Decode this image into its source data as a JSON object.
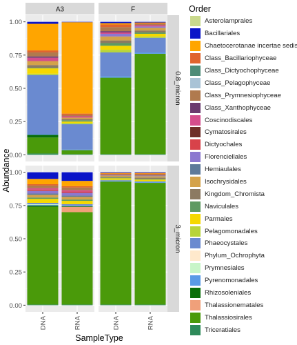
{
  "chart_data": {
    "type": "bar",
    "stacked": true,
    "facet_columns": [
      "A3",
      "F"
    ],
    "facet_rows": [
      "0.8_micron",
      "3_micron"
    ],
    "categories": [
      "DNA",
      "RNA"
    ],
    "xlabel": "SampleType",
    "ylabel": "Abundance",
    "ylim": [
      0,
      1.0
    ],
    "yticks": [
      "0.00",
      "0.25",
      "0.50",
      "0.75",
      "1.00"
    ],
    "grid": true,
    "legend": {
      "title": "Order",
      "position": "right"
    },
    "orders": [
      {
        "name": "Asterolamprales",
        "color": "#c9d98c"
      },
      {
        "name": "Bacillariales",
        "color": "#0a14c8"
      },
      {
        "name": "Chaetocerotanae incertae sedis",
        "color": "#ffa500"
      },
      {
        "name": "Class_Bacillariophyceae",
        "color": "#e0642e"
      },
      {
        "name": "Class_Dictyochophyceae",
        "color": "#4e8c78"
      },
      {
        "name": "Class_Pelagophyceae",
        "color": "#a9c3d6"
      },
      {
        "name": "Class_Prymnesiophyceae",
        "color": "#b07a4e"
      },
      {
        "name": "Class_Xanthophyceae",
        "color": "#6b3a6e"
      },
      {
        "name": "Coscinodiscales",
        "color": "#d44d8c"
      },
      {
        "name": "Cymatosirales",
        "color": "#6e2e28"
      },
      {
        "name": "Dictyochales",
        "color": "#d8424a"
      },
      {
        "name": "Florenciellales",
        "color": "#8c78d0"
      },
      {
        "name": "Hemiaulales",
        "color": "#5e7a9a"
      },
      {
        "name": "Isochrysidales",
        "color": "#d4a24a"
      },
      {
        "name": "Kingdom_Chromista",
        "color": "#8c7a62"
      },
      {
        "name": "Naviculales",
        "color": "#5e9a62"
      },
      {
        "name": "Parmales",
        "color": "#f5d800"
      },
      {
        "name": "Pelagomonadales",
        "color": "#b8d43a"
      },
      {
        "name": "Phaeocystales",
        "color": "#6a8ad0"
      },
      {
        "name": "Phylum_Ochrophyta",
        "color": "#ffe9cc"
      },
      {
        "name": "Prymnesiales",
        "color": "#c8f5c8"
      },
      {
        "name": "Pyrenomonadales",
        "color": "#5a9ae6"
      },
      {
        "name": "Rhizosoleniales",
        "color": "#0a6e0a"
      },
      {
        "name": "Thalassionematales",
        "color": "#f0a07a"
      },
      {
        "name": "Thalassiosirales",
        "color": "#4a9a0a"
      },
      {
        "name": "Triceratiales",
        "color": "#2e8a5a"
      }
    ],
    "panels": [
      {
        "column": "A3",
        "row": "0.8_micron",
        "bars": [
          {
            "sample": "DNA",
            "segments": [
              {
                "order": "Triceratiales",
                "value": 0.01
              },
              {
                "order": "Thalassiosirales",
                "value": 0.12
              },
              {
                "order": "Rhizosoleniales",
                "value": 0.02
              },
              {
                "order": "Pyrenomonadales",
                "value": 0.005
              },
              {
                "order": "Phaeocystales",
                "value": 0.445
              },
              {
                "order": "Pelagomonadales",
                "value": 0.01
              },
              {
                "order": "Parmales",
                "value": 0.04
              },
              {
                "order": "Naviculales",
                "value": 0.005
              },
              {
                "order": "Kingdom_Chromista",
                "value": 0.02
              },
              {
                "order": "Isochrysidales",
                "value": 0.03
              },
              {
                "order": "Coscinodiscales",
                "value": 0.025
              },
              {
                "order": "Class_Xanthophyceae",
                "value": 0.01
              },
              {
                "order": "Class_Prymnesiophyceae",
                "value": 0.03
              },
              {
                "order": "Class_Bacillariophyceae",
                "value": 0.015
              },
              {
                "order": "Chaetocerotanae incertae sedis",
                "value": 0.2
              },
              {
                "order": "Bacillariales",
                "value": 0.015
              }
            ]
          },
          {
            "sample": "RNA",
            "segments": [
              {
                "order": "Triceratiales",
                "value": 0.005
              },
              {
                "order": "Thalassiosirales",
                "value": 0.03
              },
              {
                "order": "Pyrenomonadales",
                "value": 0.005
              },
              {
                "order": "Phaeocystales",
                "value": 0.19
              },
              {
                "order": "Pelagomonadales",
                "value": 0.01
              },
              {
                "order": "Parmales",
                "value": 0.01
              },
              {
                "order": "Naviculales",
                "value": 0.01
              },
              {
                "order": "Kingdom_Chromista",
                "value": 0.01
              },
              {
                "order": "Isochrysidales",
                "value": 0.01
              },
              {
                "order": "Coscinodiscales",
                "value": 0.01
              },
              {
                "order": "Class_Prymnesiophyceae",
                "value": 0.01
              },
              {
                "order": "Class_Bacillariophyceae",
                "value": 0.01
              },
              {
                "order": "Chaetocerotanae incertae sedis",
                "value": 0.687
              },
              {
                "order": "Bacillariales",
                "value": 0.003
              }
            ]
          }
        ]
      },
      {
        "column": "F",
        "row": "0.8_micron",
        "bars": [
          {
            "sample": "DNA",
            "segments": [
              {
                "order": "Triceratiales",
                "value": 0.005
              },
              {
                "order": "Thalassiosirales",
                "value": 0.575
              },
              {
                "order": "Pyrenomonadales",
                "value": 0.01
              },
              {
                "order": "Phaeocystales",
                "value": 0.18
              },
              {
                "order": "Pelagomonadales",
                "value": 0.02
              },
              {
                "order": "Parmales",
                "value": 0.03
              },
              {
                "order": "Naviculales",
                "value": 0.02
              },
              {
                "order": "Kingdom_Chromista",
                "value": 0.02
              },
              {
                "order": "Isochrysidales",
                "value": 0.03
              },
              {
                "order": "Florenciellales",
                "value": 0.02
              },
              {
                "order": "Coscinodiscales",
                "value": 0.01
              },
              {
                "order": "Class_Xanthophyceae",
                "value": 0.01
              },
              {
                "order": "Class_Prymnesiophyceae",
                "value": 0.03
              },
              {
                "order": "Class_Bacillariophyceae",
                "value": 0.02
              },
              {
                "order": "Chaetocerotanae incertae sedis",
                "value": 0.01
              },
              {
                "order": "Bacillariales",
                "value": 0.01
              }
            ]
          },
          {
            "sample": "RNA",
            "segments": [
              {
                "order": "Triceratiales",
                "value": 0.005
              },
              {
                "order": "Thalassiosirales",
                "value": 0.755
              },
              {
                "order": "Pyrenomonadales",
                "value": 0.01
              },
              {
                "order": "Phaeocystales",
                "value": 0.11
              },
              {
                "order": "Pelagomonadales",
                "value": 0.01
              },
              {
                "order": "Parmales",
                "value": 0.02
              },
              {
                "order": "Naviculales",
                "value": 0.01
              },
              {
                "order": "Kingdom_Chromista",
                "value": 0.015
              },
              {
                "order": "Isochrysidales",
                "value": 0.02
              },
              {
                "order": "Florenciellales",
                "value": 0.01
              },
              {
                "order": "Coscinodiscales",
                "value": 0.01
              },
              {
                "order": "Class_Prymnesiophyceae",
                "value": 0.01
              },
              {
                "order": "Class_Bacillariophyceae",
                "value": 0.005
              },
              {
                "order": "Chaetocerotanae incertae sedis",
                "value": 0.005
              },
              {
                "order": "Bacillariales",
                "value": 0.005
              }
            ]
          }
        ]
      },
      {
        "column": "A3",
        "row": "3_micron",
        "bars": [
          {
            "sample": "DNA",
            "segments": [
              {
                "order": "Triceratiales",
                "value": 0.005
              },
              {
                "order": "Thalassiosirales",
                "value": 0.735
              },
              {
                "order": "Rhizosoleniales",
                "value": 0.01
              },
              {
                "order": "Pyrenomonadales",
                "value": 0.005
              },
              {
                "order": "Prymnesiales",
                "value": 0.005
              },
              {
                "order": "Phaeocystales",
                "value": 0.01
              },
              {
                "order": "Parmales",
                "value": 0.03
              },
              {
                "order": "Naviculales",
                "value": 0.01
              },
              {
                "order": "Isochrysidales",
                "value": 0.02
              },
              {
                "order": "Hemiaulales",
                "value": 0.01
              },
              {
                "order": "Florenciellales",
                "value": 0.02
              },
              {
                "order": "Dictyochales",
                "value": 0.01
              },
              {
                "order": "Coscinodiscales",
                "value": 0.01
              },
              {
                "order": "Class_Prymnesiophyceae",
                "value": 0.02
              },
              {
                "order": "Class_Bacillariophyceae",
                "value": 0.01
              },
              {
                "order": "Chaetocerotanae incertae sedis",
                "value": 0.04
              },
              {
                "order": "Bacillariales",
                "value": 0.05
              }
            ]
          },
          {
            "sample": "RNA",
            "segments": [
              {
                "order": "Triceratiales",
                "value": 0.005
              },
              {
                "order": "Thalassiosirales",
                "value": 0.695
              },
              {
                "order": "Thalassionematales",
                "value": 0.04
              },
              {
                "order": "Rhizosoleniales",
                "value": 0.005
              },
              {
                "order": "Pyrenomonadales",
                "value": 0.005
              },
              {
                "order": "Phaeocystales",
                "value": 0.01
              },
              {
                "order": "Parmales",
                "value": 0.025
              },
              {
                "order": "Naviculales",
                "value": 0.01
              },
              {
                "order": "Isochrysidales",
                "value": 0.02
              },
              {
                "order": "Hemiaulales",
                "value": 0.01
              },
              {
                "order": "Florenciellales",
                "value": 0.02
              },
              {
                "order": "Dictyochales",
                "value": 0.01
              },
              {
                "order": "Coscinodiscales",
                "value": 0.01
              },
              {
                "order": "Class_Prymnesiophyceae",
                "value": 0.02
              },
              {
                "order": "Class_Bacillariophyceae",
                "value": 0.01
              },
              {
                "order": "Chaetocerotanae incertae sedis",
                "value": 0.04
              },
              {
                "order": "Bacillariales",
                "value": 0.065
              }
            ]
          }
        ]
      },
      {
        "column": "F",
        "row": "3_micron",
        "bars": [
          {
            "sample": "DNA",
            "segments": [
              {
                "order": "Triceratiales",
                "value": 0.005
              },
              {
                "order": "Thalassiosirales",
                "value": 0.925
              },
              {
                "order": "Pyrenomonadales",
                "value": 0.005
              },
              {
                "order": "Phaeocystales",
                "value": 0.005
              },
              {
                "order": "Pelagomonadales",
                "value": 0.005
              },
              {
                "order": "Parmales",
                "value": 0.01
              },
              {
                "order": "Naviculales",
                "value": 0.005
              },
              {
                "order": "Kingdom_Chromista",
                "value": 0.005
              },
              {
                "order": "Isochrysidales",
                "value": 0.01
              },
              {
                "order": "Florenciellales",
                "value": 0.005
              },
              {
                "order": "Class_Prymnesiophyceae",
                "value": 0.005
              },
              {
                "order": "Class_Bacillariophyceae",
                "value": 0.005
              },
              {
                "order": "Chaetocerotanae incertae sedis",
                "value": 0.005
              },
              {
                "order": "Bacillariales",
                "value": 0.005
              }
            ]
          },
          {
            "sample": "RNA",
            "segments": [
              {
                "order": "Triceratiales",
                "value": 0.005
              },
              {
                "order": "Thalassiosirales",
                "value": 0.915
              },
              {
                "order": "Pyrenomonadales",
                "value": 0.005
              },
              {
                "order": "Phaeocystales",
                "value": 0.005
              },
              {
                "order": "Pelagomonadales",
                "value": 0.005
              },
              {
                "order": "Parmales",
                "value": 0.01
              },
              {
                "order": "Naviculales",
                "value": 0.005
              },
              {
                "order": "Kingdom_Chromista",
                "value": 0.01
              },
              {
                "order": "Isochrysidales",
                "value": 0.01
              },
              {
                "order": "Florenciellales",
                "value": 0.005
              },
              {
                "order": "Class_Prymnesiophyceae",
                "value": 0.01
              },
              {
                "order": "Class_Bacillariophyceae",
                "value": 0.005
              },
              {
                "order": "Chaetocerotanae incertae sedis",
                "value": 0.005
              },
              {
                "order": "Bacillariales",
                "value": 0.005
              }
            ]
          }
        ]
      }
    ]
  }
}
